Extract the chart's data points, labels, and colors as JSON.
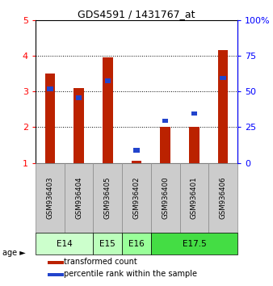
{
  "title": "GDS4591 / 1431767_at",
  "samples": [
    "GSM936403",
    "GSM936404",
    "GSM936405",
    "GSM936402",
    "GSM936400",
    "GSM936401",
    "GSM936406"
  ],
  "red_values": [
    3.5,
    3.1,
    3.95,
    1.05,
    2.0,
    2.0,
    4.15
  ],
  "blue_values": [
    3.08,
    2.82,
    3.3,
    1.35,
    2.18,
    2.38,
    3.38
  ],
  "age_groups": [
    {
      "label": "E14",
      "start": 0,
      "end": 2,
      "color": "#ccffcc"
    },
    {
      "label": "E15",
      "start": 2,
      "end": 3,
      "color": "#bbffbb"
    },
    {
      "label": "E16",
      "start": 3,
      "end": 4,
      "color": "#99ff99"
    },
    {
      "label": "E17.5",
      "start": 4,
      "end": 7,
      "color": "#44dd44"
    }
  ],
  "ylim": [
    1,
    5
  ],
  "yticks_left": [
    1,
    2,
    3,
    4,
    5
  ],
  "yticks_right": [
    0,
    25,
    50,
    75,
    100
  ],
  "red_color": "#bb2200",
  "blue_color": "#2244cc",
  "bar_width": 0.35,
  "background_color": "#ffffff",
  "sample_box_color": "#cccccc",
  "sample_box_edge": "#888888"
}
